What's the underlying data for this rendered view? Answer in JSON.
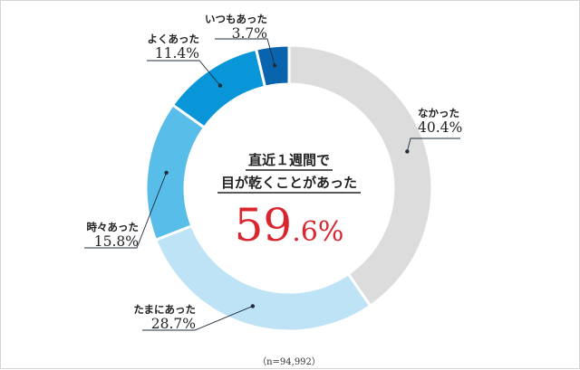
{
  "chart_data": {
    "type": "pie",
    "categories": [
      "なかった",
      "たまにあった",
      "時々あった",
      "よくあった",
      "いつもあった"
    ],
    "values": [
      40.4,
      28.7,
      15.8,
      11.4,
      3.7
    ],
    "value_labels": [
      "40.4%",
      "28.7%",
      "15.8%",
      "11.4%",
      "3.7%"
    ],
    "colors": [
      "#dcdcdc",
      "#bee2f6",
      "#58bde9",
      "#0996d8",
      "#0a63ad"
    ],
    "center_text": {
      "line1": "直近１週間で",
      "line2": "目が乾くことがあった",
      "value_main": "59",
      "value_decimal": ".6%"
    },
    "note": "（n=94,992）"
  }
}
